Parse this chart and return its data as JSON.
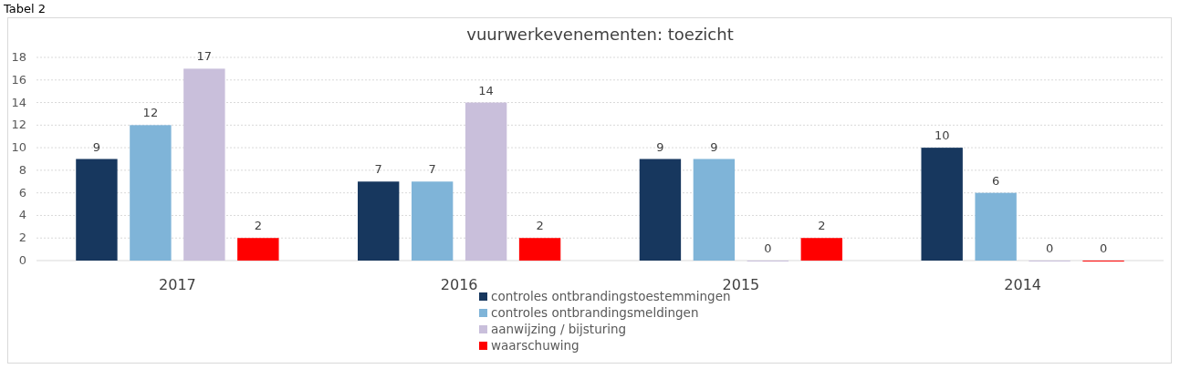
{
  "chart_data": {
    "type": "bar",
    "title": "vuurwerkevenementen: toezicht",
    "annotations": [
      "Tabel 2"
    ],
    "categories": [
      "2017",
      "2016",
      "2015",
      "2014"
    ],
    "series": [
      {
        "name": "controles ontbrandingstoestemmingen",
        "color": "#17375e",
        "values": [
          9,
          7,
          9,
          10
        ]
      },
      {
        "name": "controles ontbrandingsmeldingen",
        "color": "#7fb4d8",
        "values": [
          12,
          7,
          9,
          6
        ]
      },
      {
        "name": "aanwijzing / bijsturing",
        "color": "#c9bfdb",
        "values": [
          17,
          14,
          0,
          0
        ]
      },
      {
        "name": "waarschuwing",
        "color": "#ff0000",
        "values": [
          2,
          2,
          2,
          0
        ]
      }
    ],
    "ylim": [
      0,
      18
    ],
    "yticks": [
      0,
      2,
      4,
      6,
      8,
      10,
      12,
      14,
      16,
      18
    ],
    "grid": "y",
    "data_labels": true,
    "legend": "bottom"
  }
}
